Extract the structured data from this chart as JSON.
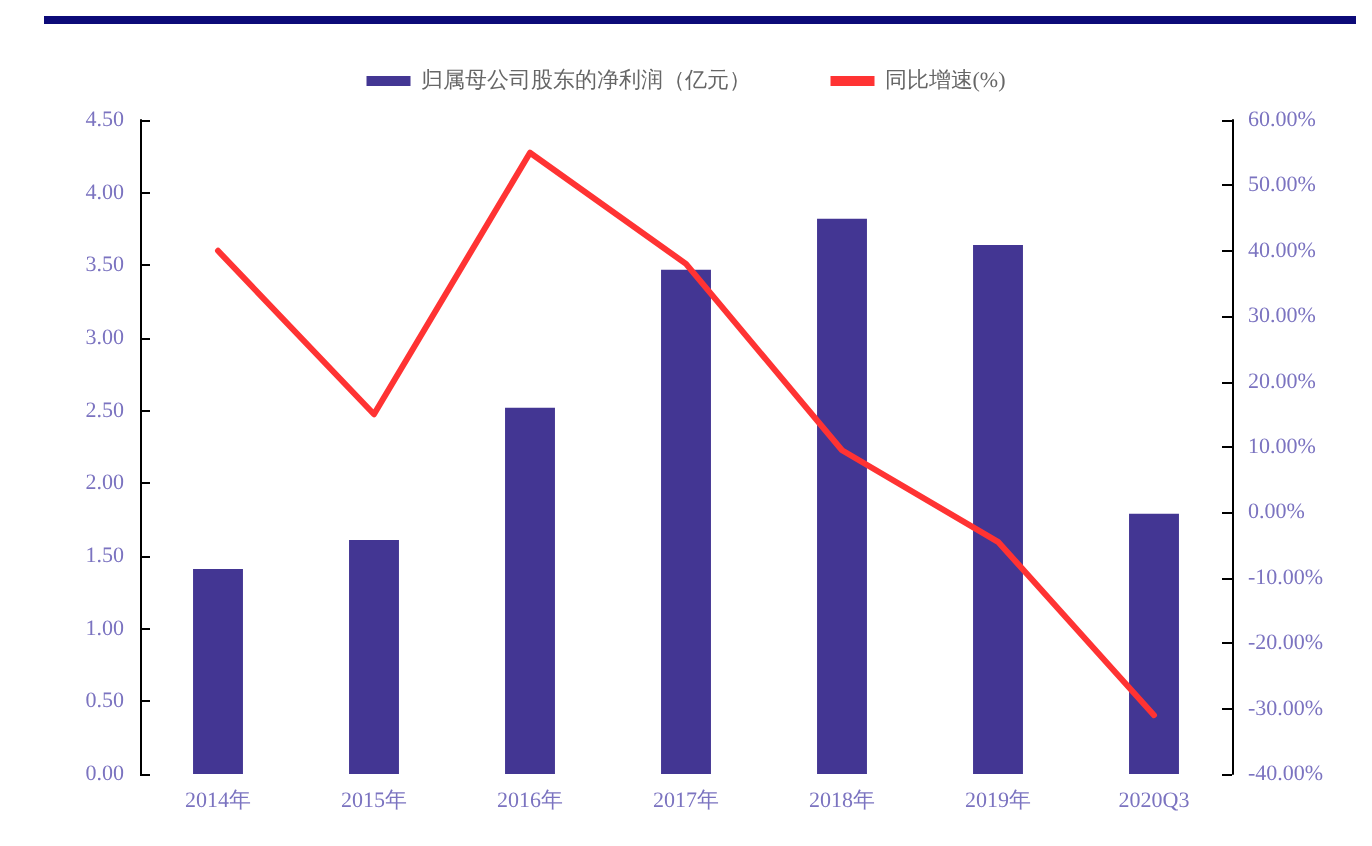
{
  "chart_data": {
    "type": "bar",
    "categories": [
      "2014年",
      "2015年",
      "2016年",
      "2017年",
      "2018年",
      "2019年",
      "2020Q3"
    ],
    "series": [
      {
        "name": "归属母公司股东的净利润（亿元）",
        "color": "#433693",
        "values": [
          1.41,
          1.61,
          2.52,
          3.47,
          3.82,
          3.64,
          1.79
        ]
      },
      {
        "name": "同比增速(%)",
        "type": "line",
        "axis": "y2",
        "color": "#ff3333",
        "values": [
          40,
          15,
          55,
          38,
          9.5,
          -4.5,
          -31
        ]
      }
    ],
    "ylim": [
      0,
      4.5
    ],
    "yticks": [
      {
        "value": 0,
        "label": "0.00"
      },
      {
        "value": 0.5,
        "label": "0.50"
      },
      {
        "value": 1,
        "label": "1.00"
      },
      {
        "value": 1.5,
        "label": "1.50"
      },
      {
        "value": 2,
        "label": "2.00"
      },
      {
        "value": 2.5,
        "label": "2.50"
      },
      {
        "value": 3,
        "label": "3.00"
      },
      {
        "value": 3.5,
        "label": "3.50"
      },
      {
        "value": 4,
        "label": "4.00"
      },
      {
        "value": 4.5,
        "label": "4.50"
      }
    ],
    "y2lim": [
      -40,
      60
    ],
    "y2ticks": [
      {
        "value": -40,
        "label": "-40.00%"
      },
      {
        "value": -30,
        "label": "-30.00%"
      },
      {
        "value": -20,
        "label": "-20.00%"
      },
      {
        "value": -10,
        "label": "-10.00%"
      },
      {
        "value": 0,
        "label": "0.00%"
      },
      {
        "value": 10,
        "label": "10.00%"
      },
      {
        "value": 20,
        "label": "20.00%"
      },
      {
        "value": 30,
        "label": "30.00%"
      },
      {
        "value": 40,
        "label": "40.00%"
      },
      {
        "value": 50,
        "label": "50.00%"
      },
      {
        "value": 60,
        "label": "60.00%"
      }
    ],
    "grid": false,
    "legend": "top",
    "marker": "none",
    "line_style": "solid"
  }
}
